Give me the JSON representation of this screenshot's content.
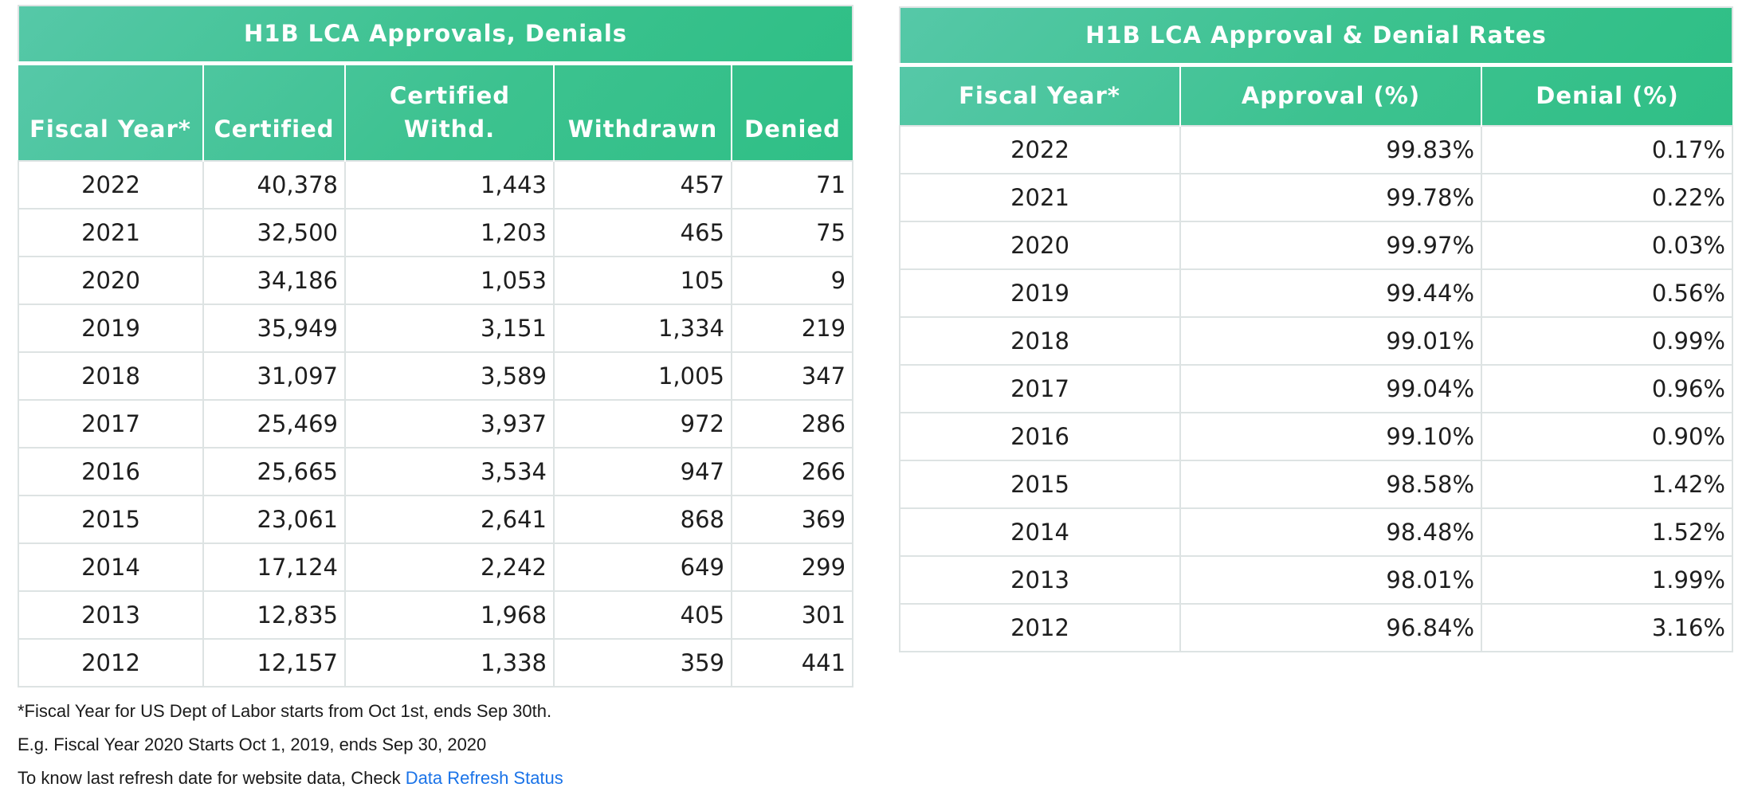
{
  "approvals_table": {
    "title": "H1B LCA Approvals, Denials",
    "headers": [
      "Fiscal Year*",
      "Certified",
      "Certified Withd.",
      "Withdrawn",
      "Denied"
    ],
    "rows": [
      [
        "2022",
        "40,378",
        "1,443",
        "457",
        "71"
      ],
      [
        "2021",
        "32,500",
        "1,203",
        "465",
        "75"
      ],
      [
        "2020",
        "34,186",
        "1,053",
        "105",
        "9"
      ],
      [
        "2019",
        "35,949",
        "3,151",
        "1,334",
        "219"
      ],
      [
        "2018",
        "31,097",
        "3,589",
        "1,005",
        "347"
      ],
      [
        "2017",
        "25,469",
        "3,937",
        "972",
        "286"
      ],
      [
        "2016",
        "25,665",
        "3,534",
        "947",
        "266"
      ],
      [
        "2015",
        "23,061",
        "2,641",
        "868",
        "369"
      ],
      [
        "2014",
        "17,124",
        "2,242",
        "649",
        "299"
      ],
      [
        "2013",
        "12,835",
        "1,968",
        "405",
        "301"
      ],
      [
        "2012",
        "12,157",
        "1,338",
        "359",
        "441"
      ]
    ]
  },
  "rates_table": {
    "title": "H1B LCA Approval & Denial Rates",
    "headers": [
      "Fiscal Year*",
      "Approval (%)",
      "Denial (%)"
    ],
    "rows": [
      [
        "2022",
        "99.83%",
        "0.17%"
      ],
      [
        "2021",
        "99.78%",
        "0.22%"
      ],
      [
        "2020",
        "99.97%",
        "0.03%"
      ],
      [
        "2019",
        "99.44%",
        "0.56%"
      ],
      [
        "2018",
        "99.01%",
        "0.99%"
      ],
      [
        "2017",
        "99.04%",
        "0.96%"
      ],
      [
        "2016",
        "99.10%",
        "0.90%"
      ],
      [
        "2015",
        "98.58%",
        "1.42%"
      ],
      [
        "2014",
        "98.48%",
        "1.52%"
      ],
      [
        "2013",
        "98.01%",
        "1.99%"
      ],
      [
        "2012",
        "96.84%",
        "3.16%"
      ]
    ]
  },
  "notes": {
    "line1": "*Fiscal Year for US Dept of Labor starts from Oct 1st, ends Sep 30th.",
    "line2": "E.g. Fiscal Year 2020 Starts Oct 1, 2019, ends Sep 30, 2020",
    "line3_prefix": "To know last refresh date for website data, Check ",
    "line3_link": "Data Refresh Status"
  },
  "colors": {
    "header_bg": "#3cc28f",
    "header_text": "#ffffff",
    "link": "#1a73e8",
    "border": "#dde3e3"
  }
}
